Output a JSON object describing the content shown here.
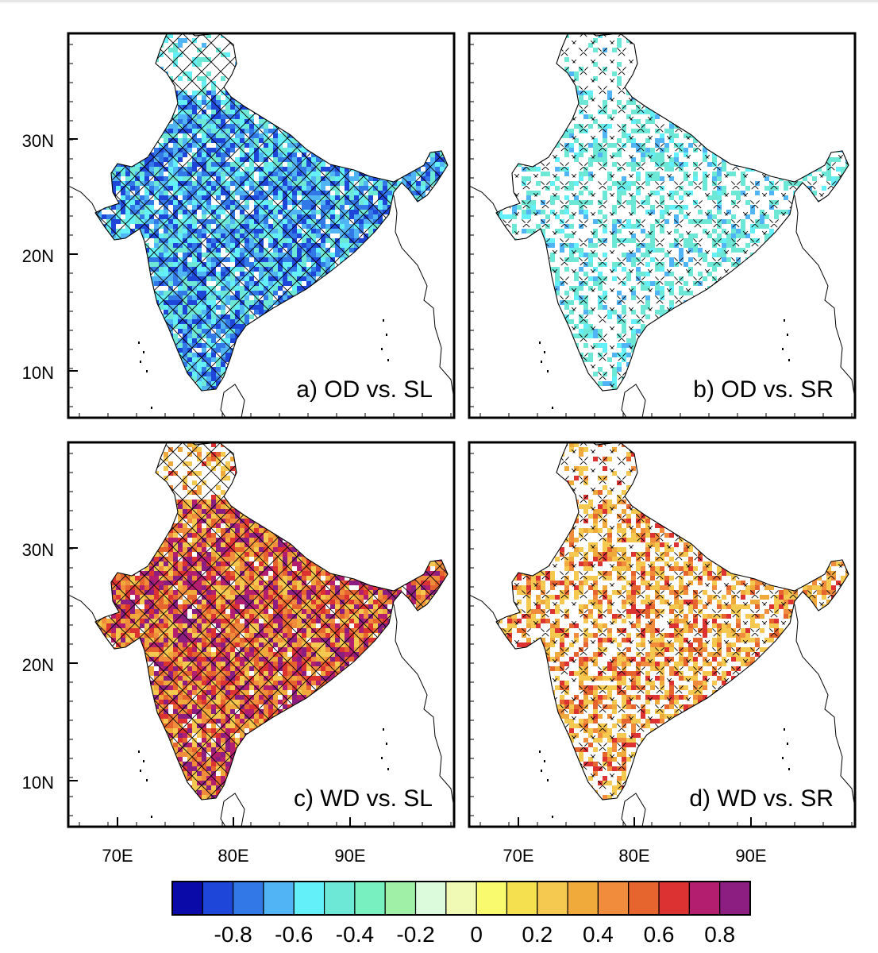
{
  "panels": [
    {
      "label": "a) OD vs. SL",
      "scheme": "blue",
      "strength": 0.8,
      "hatch": "dense"
    },
    {
      "label": "b) OD vs. SR",
      "scheme": "blue",
      "strength": 0.28,
      "hatch": "sparse"
    },
    {
      "label": "c) WD vs. SL",
      "scheme": "warm",
      "strength": 0.85,
      "hatch": "dense"
    },
    {
      "label": "d) WD vs. SR",
      "scheme": "warm",
      "strength": 0.45,
      "hatch": "sparse"
    }
  ],
  "lat_ticks": [
    "30N",
    "20N",
    "10N"
  ],
  "lon_ticks": [
    "70E",
    "80E",
    "90E"
  ],
  "colorbar": {
    "colors": [
      "#0a0aa8",
      "#1e46d8",
      "#3278e6",
      "#50b4f5",
      "#64f0f8",
      "#6ee8d6",
      "#78f0c0",
      "#a0f0a8",
      "#dcfadc",
      "#f0fab4",
      "#fafa6e",
      "#f5e150",
      "#f5c850",
      "#f0aa3c",
      "#f08c3c",
      "#e6642d",
      "#dc3232",
      "#b41e6e",
      "#8c1e82"
    ],
    "tick_labels": [
      "-0.8",
      "-0.6",
      "-0.4",
      "-0.2",
      "0",
      "0.2",
      "0.4",
      "0.6",
      "0.8"
    ]
  }
}
